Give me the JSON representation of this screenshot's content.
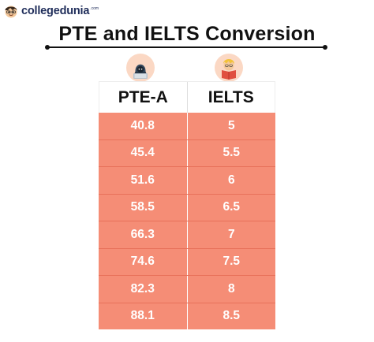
{
  "brand": {
    "name": "collegedunia",
    "suffix": ".com",
    "logo_icon": "student-face-icon"
  },
  "title": "PTE and IELTS Conversion",
  "icons": {
    "pte": "hooded-student-laptop-icon",
    "ielts": "student-reading-book-icon"
  },
  "colors": {
    "accent": "#f58d76",
    "row_divider": "#e7715a",
    "badge_bg": "#fbd8c4",
    "text": "#111111"
  },
  "table": {
    "headers": [
      "PTE-A",
      "IELTS"
    ],
    "rows": [
      [
        "40.8",
        "5"
      ],
      [
        "45.4",
        "5.5"
      ],
      [
        "51.6",
        "6"
      ],
      [
        "58.5",
        "6.5"
      ],
      [
        "66.3",
        "7"
      ],
      [
        "74.6",
        "7.5"
      ],
      [
        "82.3",
        "8"
      ],
      [
        "88.1",
        "8.5"
      ]
    ]
  }
}
